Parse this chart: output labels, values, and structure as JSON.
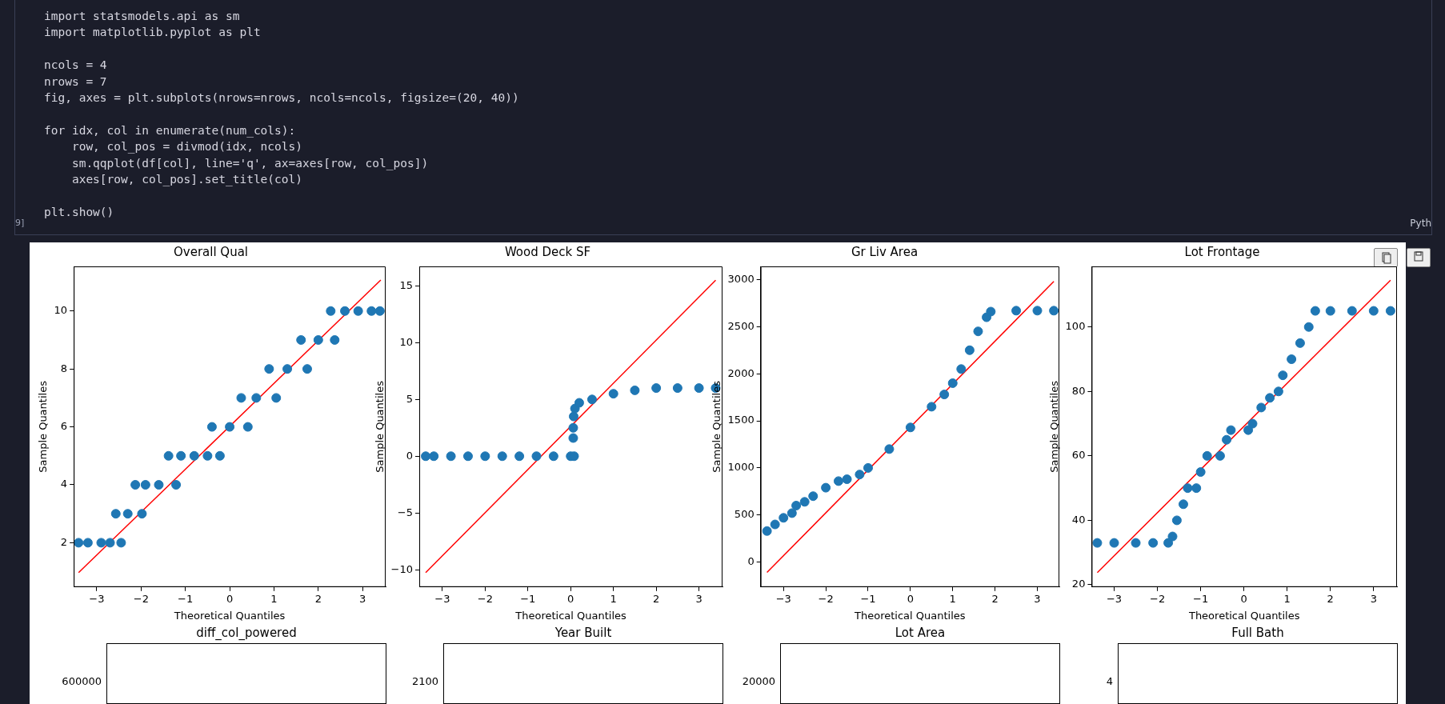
{
  "chart_data": [
    {
      "type": "other",
      "annotations": [
        "import statsmodels.api as sm\nimport matplotlib.pyplot as plt\n\nncols = 4\nnrows = 7\nfig, axes = plt.subplots(nrows=nrows, ncols=ncols, figsize=(20, 40))\n\nfor idx, col in enumerate(num_cols):\n    row, col_pos = divmod(idx, ncols)\n    sm.qqplot(df[col], line='q', ax=axes[row, col_pos])\n    axes[row, col_pos].set_title(col)\n\nplt.show()",
        "9]",
        "Pyth"
      ]
    },
    {
      "type": "scatter",
      "title": "Overall Qual",
      "xlabel": "Theoretical Quantiles",
      "ylabel": "Sample Quantiles",
      "marker": "circle",
      "grid": false,
      "xlim": [
        -3.52,
        3.52
      ],
      "ylim": [
        0.47,
        11.54
      ],
      "xticks": [
        {
          "value": -3,
          "label": "−3"
        },
        {
          "value": -2,
          "label": "−2"
        },
        {
          "value": -1,
          "label": "−1"
        },
        0,
        1,
        2,
        3
      ],
      "yticks": [
        2,
        4,
        6,
        8,
        10
      ],
      "series": [
        {
          "type": "scatter",
          "color": "#1f77b4",
          "x": [
            -3.41,
            -3.2,
            -2.9,
            -2.7,
            -2.45,
            -2.57,
            -2.3,
            -1.98,
            -2.13,
            -1.9,
            -1.6,
            -1.21,
            -1.38,
            -1.1,
            -0.8,
            -0.5,
            -0.22,
            -0.4,
            0,
            0.41,
            0.26,
            0.6,
            1.05,
            0.89,
            1.3,
            1.75,
            1.61,
            2.0,
            2.37,
            2.28,
            2.6,
            2.9,
            3.2,
            3.39
          ],
          "values": [
            2,
            2,
            2,
            2,
            2,
            3,
            3,
            3,
            4,
            4,
            4,
            4,
            5,
            5,
            5,
            5,
            5,
            6,
            6,
            6,
            7,
            7,
            7,
            8,
            8,
            8,
            9,
            9,
            9,
            10,
            10,
            10,
            10,
            10
          ]
        },
        {
          "type": "line",
          "marker": "none",
          "color": "#ff0000",
          "x": [
            -3.41,
            3.41
          ],
          "values": [
            0.97,
            11.07
          ]
        }
      ]
    },
    {
      "type": "scatter",
      "title": "Wood Deck SF",
      "xlabel": "Theoretical Quantiles",
      "ylabel": "Sample Quantiles",
      "marker": "circle",
      "grid": false,
      "xlim": [
        -3.54,
        3.55
      ],
      "ylim": [
        -11.52,
        16.71
      ],
      "xticks": [
        {
          "value": -3,
          "label": "−3"
        },
        {
          "value": -2,
          "label": "−2"
        },
        {
          "value": -1,
          "label": "−1"
        },
        0,
        1,
        2,
        3
      ],
      "yticks": [
        {
          "value": -10,
          "label": "−10"
        },
        {
          "value": -5,
          "label": "−5"
        },
        0,
        5,
        10,
        15
      ],
      "series": [
        {
          "type": "scatter",
          "color": "#1f77b4",
          "x": [
            -3.39,
            -3.2,
            -2.8,
            -2.4,
            -2.0,
            -1.6,
            -1.2,
            -0.8,
            -0.4,
            0,
            0.08,
            0.06,
            0.06,
            0.07,
            0.1,
            0.2,
            0.5,
            1.0,
            1.5,
            2.0,
            2.5,
            3.0,
            3.39
          ],
          "values": [
            0,
            0,
            0,
            0,
            0,
            0,
            0,
            0,
            0,
            0,
            0,
            1.6,
            2.5,
            3.5,
            4.2,
            4.7,
            5.0,
            5.5,
            5.8,
            6.0,
            6.0,
            6.0,
            6.0
          ]
        },
        {
          "type": "line",
          "marker": "none",
          "color": "#ff0000",
          "x": [
            -3.39,
            3.39
          ],
          "values": [
            -10.25,
            15.5
          ]
        }
      ]
    },
    {
      "type": "scatter",
      "title": "Gr Liv Area",
      "xlabel": "Theoretical Quantiles",
      "ylabel": "Sample Quantiles",
      "marker": "circle",
      "grid": false,
      "xlim": [
        -3.54,
        3.52
      ],
      "ylim": [
        -265,
        3140
      ],
      "xticks": [
        {
          "value": -3,
          "label": "−3"
        },
        {
          "value": -2,
          "label": "−2"
        },
        {
          "value": -1,
          "label": "−1"
        },
        0,
        1,
        2,
        3
      ],
      "yticks": [
        0,
        500,
        1000,
        1500,
        2000,
        2500,
        3000
      ],
      "series": [
        {
          "type": "scatter",
          "color": "#1f77b4",
          "x": [
            -3.39,
            -3.2,
            -3.0,
            -2.8,
            -2.7,
            -2.5,
            -2.3,
            -2.0,
            -1.7,
            -1.5,
            -1.2,
            -1.0,
            -0.5,
            0,
            0.5,
            0.8,
            1.0,
            1.2,
            1.4,
            1.6,
            1.8,
            1.9,
            2.5,
            3.0,
            3.39
          ],
          "values": [
            330,
            400,
            470,
            520,
            600,
            640,
            700,
            790,
            860,
            880,
            930,
            1000,
            1200,
            1430,
            1650,
            1780,
            1900,
            2050,
            2250,
            2450,
            2600,
            2660,
            2670,
            2670,
            2670
          ]
        },
        {
          "type": "line",
          "marker": "none",
          "color": "#ff0000",
          "x": [
            -3.39,
            3.39
          ],
          "values": [
            -110,
            2980
          ]
        }
      ]
    },
    {
      "type": "scatter",
      "title": "Lot Frontage",
      "xlabel": "Theoretical Quantiles",
      "ylabel": "Sample Quantiles",
      "marker": "circle",
      "grid": false,
      "xlim": [
        -3.52,
        3.54
      ],
      "ylim": [
        19.3,
        118.8
      ],
      "xticks": [
        {
          "value": -3,
          "label": "−3"
        },
        {
          "value": -2,
          "label": "−2"
        },
        {
          "value": -1,
          "label": "−1"
        },
        0,
        1,
        2,
        3
      ],
      "yticks": [
        20,
        40,
        60,
        80,
        100
      ],
      "series": [
        {
          "type": "scatter",
          "color": "#1f77b4",
          "x": [
            -3.39,
            -3.0,
            -2.5,
            -2.1,
            -1.75,
            -1.65,
            -1.55,
            -1.4,
            -1.3,
            -1.1,
            -1.0,
            -0.85,
            -0.55,
            -0.4,
            -0.3,
            0.1,
            0.2,
            0.4,
            0.6,
            0.8,
            0.9,
            1.1,
            1.3,
            1.5,
            1.65,
            2.0,
            2.5,
            3.0,
            3.39
          ],
          "values": [
            33,
            33,
            33,
            33,
            33,
            35,
            40,
            45,
            50,
            50,
            55,
            60,
            60,
            65,
            68,
            68,
            70,
            75,
            78,
            80,
            85,
            90,
            95,
            100,
            105,
            105,
            105,
            105,
            105
          ]
        },
        {
          "type": "line",
          "marker": "none",
          "color": "#ff0000",
          "x": [
            -3.39,
            3.39
          ],
          "values": [
            23.8,
            114.5
          ]
        }
      ]
    },
    {
      "type": "other",
      "title": "diff_col_powered",
      "annotations": [
        "600000"
      ]
    },
    {
      "type": "other",
      "title": "Year Built",
      "annotations": [
        "2100"
      ]
    },
    {
      "type": "other",
      "title": "Lot Area",
      "annotations": [
        "20000"
      ]
    },
    {
      "type": "other",
      "title": "Full Bath",
      "annotations": [
        "4"
      ]
    }
  ]
}
